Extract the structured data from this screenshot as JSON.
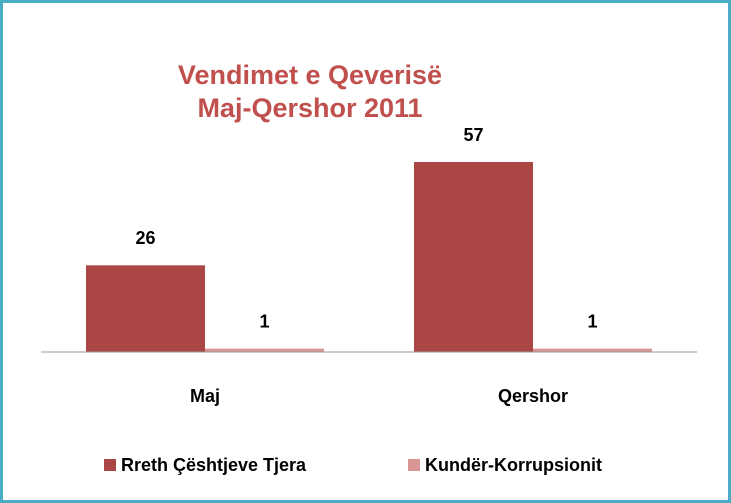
{
  "chart_data": {
    "type": "bar",
    "title": [
      "Vendimet e Qeverisë",
      "Maj-Qershor 2011"
    ],
    "categories": [
      "Maj",
      "Qershor"
    ],
    "series": [
      {
        "name": "Rreth Çështjeve Tjera",
        "color": "#aa4643",
        "values": [
          26,
          57
        ]
      },
      {
        "name": "Kundër-Korrupsionit",
        "color": "#d99694",
        "values": [
          1,
          1
        ]
      }
    ],
    "legend": "bottom"
  }
}
